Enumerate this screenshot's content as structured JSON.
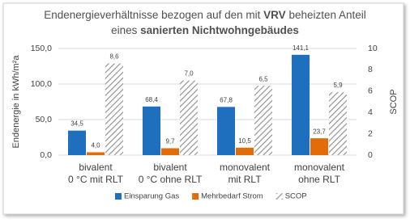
{
  "chart_data": {
    "type": "bar",
    "title": [
      "Endenergieverhältnisse bezogen auf den mit ",
      "VRV",
      " beheizten Anteil",
      "eines ",
      "sanierten Nichtwohngebäudes"
    ],
    "categories": [
      [
        "bivalent",
        "0 °C mit RLT"
      ],
      [
        "bivalent",
        "0 °C ohne RLT"
      ],
      [
        "monovalent",
        "mit RLT"
      ],
      [
        "monovalent",
        "ohne RLT"
      ]
    ],
    "series": [
      {
        "name": "Einsparung Gas",
        "color": "#1f6fbf",
        "values": [
          34.5,
          68.4,
          67.8,
          141.1
        ],
        "value_labels": [
          "34,5",
          "68,4",
          "67,8",
          "141,1"
        ]
      },
      {
        "name": "Mehrbedarf Strom",
        "color": "#e36c0a",
        "values": [
          4.0,
          9.7,
          10.5,
          23.7
        ],
        "value_labels": [
          "4,0",
          "9,7",
          "10,5",
          "23,7"
        ]
      },
      {
        "name": "SCOP",
        "color": "#8c8c8c",
        "hatch": true,
        "axis": "y2",
        "values": [
          8.6,
          7.0,
          6.5,
          5.9
        ],
        "value_labels": [
          "8,6",
          "7,0",
          "6,5",
          "5,9"
        ]
      }
    ],
    "ylabel": "Endenergie in kWh/m²a",
    "y2label": "SCOP",
    "ylim": [
      0,
      150
    ],
    "yticks": [
      {
        "value": 0,
        "label": "0,0"
      },
      {
        "value": 50,
        "label": "50,0"
      },
      {
        "value": 100,
        "label": "100,0"
      },
      {
        "value": 150,
        "label": "150,0"
      }
    ],
    "y2lim": [
      0,
      10
    ],
    "y2ticks": [
      0,
      2,
      4,
      6,
      8,
      10
    ],
    "grid": true,
    "legend": "bottom"
  }
}
